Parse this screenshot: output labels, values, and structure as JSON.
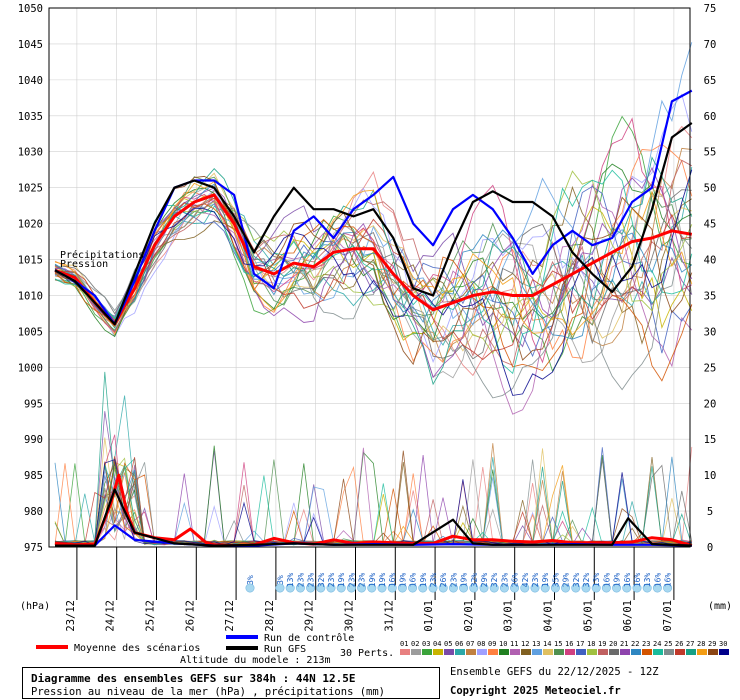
{
  "chart_data": {
    "type": "line",
    "left_axis": {
      "label": "(hPa)",
      "min": 975,
      "max": 1050,
      "ticks": [
        975,
        980,
        985,
        990,
        995,
        1000,
        1005,
        1010,
        1015,
        1020,
        1025,
        1030,
        1035,
        1040,
        1045,
        1050
      ]
    },
    "right_axis": {
      "label": "(mm)",
      "min": 0,
      "max": 75,
      "ticks": [
        0,
        5,
        10,
        15,
        20,
        25,
        30,
        35,
        40,
        45,
        50,
        55,
        60,
        65,
        70,
        75
      ]
    },
    "x_ticks": [
      "23/12",
      "24/12",
      "25/12",
      "26/12",
      "27/12",
      "28/12",
      "29/12",
      "30/12",
      "31/12",
      "01/01",
      "02/01",
      "03/01",
      "04/01",
      "05/01",
      "06/01",
      "07/01"
    ],
    "annotations": {
      "precip": "Précipitations",
      "pression": "Pression"
    },
    "prob_pct": [
      "3%",
      "3%",
      "13%",
      "23%",
      "23%",
      "32%",
      "23%",
      "19%",
      "23%",
      "23%",
      "19%",
      "19%",
      "16%",
      "19%",
      "16%",
      "19%",
      "23%",
      "26%",
      "23%",
      "19%",
      "32%",
      "29%",
      "32%",
      "23%",
      "26%",
      "42%",
      "23%",
      "19%",
      "35%",
      "29%",
      "32%",
      "32%",
      "13%",
      "16%",
      "19%",
      "16%",
      "16%",
      "13%",
      "16%",
      "16%"
    ],
    "series": [
      {
        "name": "Moyenne des scénarios",
        "color": "#ff0000",
        "pressure": [
          [
            0,
            1013.5
          ],
          [
            0.5,
            1012.5
          ],
          [
            1,
            1009
          ],
          [
            1.5,
            1006
          ],
          [
            2,
            1011
          ],
          [
            2.5,
            1017
          ],
          [
            3,
            1021
          ],
          [
            3.5,
            1023
          ],
          [
            4,
            1024
          ],
          [
            4.5,
            1020
          ],
          [
            5,
            1014
          ],
          [
            5.5,
            1013
          ],
          [
            6,
            1014.5
          ],
          [
            6.5,
            1014
          ],
          [
            7,
            1016
          ],
          [
            7.5,
            1016.5
          ],
          [
            8,
            1016.5
          ],
          [
            8.5,
            1013
          ],
          [
            9,
            1010
          ],
          [
            9.5,
            1008
          ],
          [
            10,
            1009
          ],
          [
            10.5,
            1010
          ],
          [
            11,
            1010.5
          ],
          [
            11.5,
            1010
          ],
          [
            12,
            1010
          ],
          [
            12.5,
            1011.5
          ],
          [
            13,
            1013
          ],
          [
            13.5,
            1014.5
          ],
          [
            14,
            1016
          ],
          [
            14.5,
            1017.5
          ],
          [
            15,
            1018
          ],
          [
            15.5,
            1019
          ],
          [
            16,
            1018.5
          ]
        ],
        "precip": [
          [
            0,
            0.5
          ],
          [
            0.5,
            0.3
          ],
          [
            1,
            0.4
          ],
          [
            1.4,
            6
          ],
          [
            1.6,
            10
          ],
          [
            1.8,
            5
          ],
          [
            2,
            2
          ],
          [
            2.5,
            1.3
          ],
          [
            3,
            1
          ],
          [
            3.4,
            2.5
          ],
          [
            3.8,
            0.6
          ],
          [
            4,
            0.3
          ],
          [
            4.5,
            0.2
          ],
          [
            5,
            0.3
          ],
          [
            5.5,
            1.2
          ],
          [
            6,
            0.6
          ],
          [
            6.5,
            0.4
          ],
          [
            7,
            1
          ],
          [
            7.5,
            0.5
          ],
          [
            8,
            0.7
          ],
          [
            8.5,
            0.6
          ],
          [
            9,
            0.5
          ],
          [
            9.5,
            0.5
          ],
          [
            10,
            1.5
          ],
          [
            10.5,
            1
          ],
          [
            11,
            1
          ],
          [
            11.5,
            0.8
          ],
          [
            12,
            0.7
          ],
          [
            12.5,
            0.9
          ],
          [
            13,
            0.6
          ],
          [
            13.5,
            0.6
          ],
          [
            14,
            0.6
          ],
          [
            14.5,
            0.7
          ],
          [
            15,
            1.3
          ],
          [
            15.5,
            1
          ],
          [
            16,
            0.2
          ]
        ]
      },
      {
        "name": "Run de contrôle",
        "color": "#0000ff",
        "pressure": [
          [
            0,
            1013.5
          ],
          [
            0.5,
            1012
          ],
          [
            1,
            1010
          ],
          [
            1.5,
            1006
          ],
          [
            2,
            1012
          ],
          [
            2.5,
            1019
          ],
          [
            3,
            1025
          ],
          [
            3.5,
            1026
          ],
          [
            4,
            1026
          ],
          [
            4.5,
            1024
          ],
          [
            5,
            1013
          ],
          [
            5.5,
            1011
          ],
          [
            6,
            1019
          ],
          [
            6.5,
            1021
          ],
          [
            7,
            1018
          ],
          [
            7.5,
            1022
          ],
          [
            8,
            1024
          ],
          [
            8.5,
            1026.5
          ],
          [
            9,
            1020
          ],
          [
            9.5,
            1017
          ],
          [
            10,
            1022
          ],
          [
            10.5,
            1024
          ],
          [
            11,
            1022
          ],
          [
            11.5,
            1018
          ],
          [
            12,
            1013
          ],
          [
            12.5,
            1017
          ],
          [
            13,
            1019
          ],
          [
            13.5,
            1017
          ],
          [
            14,
            1018
          ],
          [
            14.5,
            1023
          ],
          [
            15,
            1025
          ],
          [
            15.5,
            1037
          ],
          [
            16,
            1038.5
          ]
        ],
        "precip": [
          [
            0,
            0.2
          ],
          [
            1,
            0.2
          ],
          [
            1.5,
            3
          ],
          [
            2,
            1
          ],
          [
            3,
            0.5
          ],
          [
            4,
            0.2
          ],
          [
            5,
            0.2
          ],
          [
            6,
            0.5
          ],
          [
            7,
            0.3
          ],
          [
            8,
            0.4
          ],
          [
            9,
            0.3
          ],
          [
            10,
            0.4
          ],
          [
            11,
            0.3
          ],
          [
            12,
            0.3
          ],
          [
            13,
            0.4
          ],
          [
            14,
            0.3
          ],
          [
            15,
            0.3
          ],
          [
            16,
            0.2
          ]
        ]
      },
      {
        "name": "Run GFS",
        "color": "#000000",
        "pressure": [
          [
            0,
            1013.5
          ],
          [
            0.5,
            1012
          ],
          [
            1,
            1009
          ],
          [
            1.5,
            1006
          ],
          [
            2,
            1013
          ],
          [
            2.5,
            1020
          ],
          [
            3,
            1025
          ],
          [
            3.5,
            1026
          ],
          [
            4,
            1025
          ],
          [
            4.5,
            1021
          ],
          [
            5,
            1016
          ],
          [
            5.5,
            1021
          ],
          [
            6,
            1025
          ],
          [
            6.5,
            1022
          ],
          [
            7,
            1022
          ],
          [
            7.5,
            1021
          ],
          [
            8,
            1022
          ],
          [
            8.5,
            1018
          ],
          [
            9,
            1011
          ],
          [
            9.5,
            1010
          ],
          [
            10,
            1017
          ],
          [
            10.5,
            1023
          ],
          [
            11,
            1024.5
          ],
          [
            11.5,
            1023
          ],
          [
            12,
            1023
          ],
          [
            12.5,
            1021
          ],
          [
            13,
            1016
          ],
          [
            13.5,
            1013
          ],
          [
            14,
            1010.5
          ],
          [
            14.5,
            1014
          ],
          [
            15,
            1022
          ],
          [
            15.5,
            1032
          ],
          [
            16,
            1034
          ]
        ],
        "precip": [
          [
            0,
            0.2
          ],
          [
            1,
            0.2
          ],
          [
            1.5,
            8
          ],
          [
            2,
            2
          ],
          [
            3,
            0.5
          ],
          [
            4,
            0.2
          ],
          [
            5,
            0.3
          ],
          [
            6,
            0.5
          ],
          [
            7,
            0.3
          ],
          [
            8,
            0.3
          ],
          [
            9,
            0.3
          ],
          [
            10,
            3.8
          ],
          [
            10.5,
            0.5
          ],
          [
            11,
            0.3
          ],
          [
            12,
            0.3
          ],
          [
            13,
            0.3
          ],
          [
            14,
            0.3
          ],
          [
            14.4,
            4
          ],
          [
            15,
            0.4
          ],
          [
            16,
            0.2
          ]
        ]
      }
    ],
    "perturbations": {
      "label": "30 Perts.",
      "count": 30
    }
  },
  "legend": {
    "moyenne": "Moyenne des scénarios",
    "controle": "Run de contrôle",
    "gfs": "Run GFS",
    "perts": "30 Perts.",
    "pert_ids": [
      "01",
      "02",
      "03",
      "04",
      "05",
      "06",
      "07",
      "08",
      "09",
      "10",
      "11",
      "12",
      "13",
      "14",
      "15",
      "16",
      "17",
      "18",
      "19",
      "20",
      "21",
      "22",
      "23",
      "24",
      "25",
      "26",
      "27",
      "28",
      "29",
      "30"
    ],
    "pert_colors": [
      "#e88080",
      "#9c9c9c",
      "#3aa33a",
      "#c8b400",
      "#7a4aa8",
      "#2aa8a8",
      "#c08040",
      "#a0a0ff",
      "#ff8040",
      "#208020",
      "#b060b0",
      "#806020",
      "#60a0e0",
      "#e0c060",
      "#509050",
      "#d04080",
      "#4060c0",
      "#a0c040",
      "#c06060",
      "#6a6a6a",
      "#8e44ad",
      "#2e86c1",
      "#d35400",
      "#1abc9c",
      "#7f8c8d",
      "#c0392b",
      "#16a085",
      "#f39c12",
      "#8b4513",
      "#00008b"
    ]
  },
  "footer": {
    "altitude": "Altitude du modele : 213m",
    "title": "Diagramme des ensembles GEFS sur 384h : 44N 12.5E",
    "subtitle": "Pression au niveau de la mer (hPa) , précipitations (mm)",
    "run": "Ensemble GEFS du 22/12/2025 - 12Z",
    "copyright": "Copyright 2025 Meteociel.fr"
  }
}
